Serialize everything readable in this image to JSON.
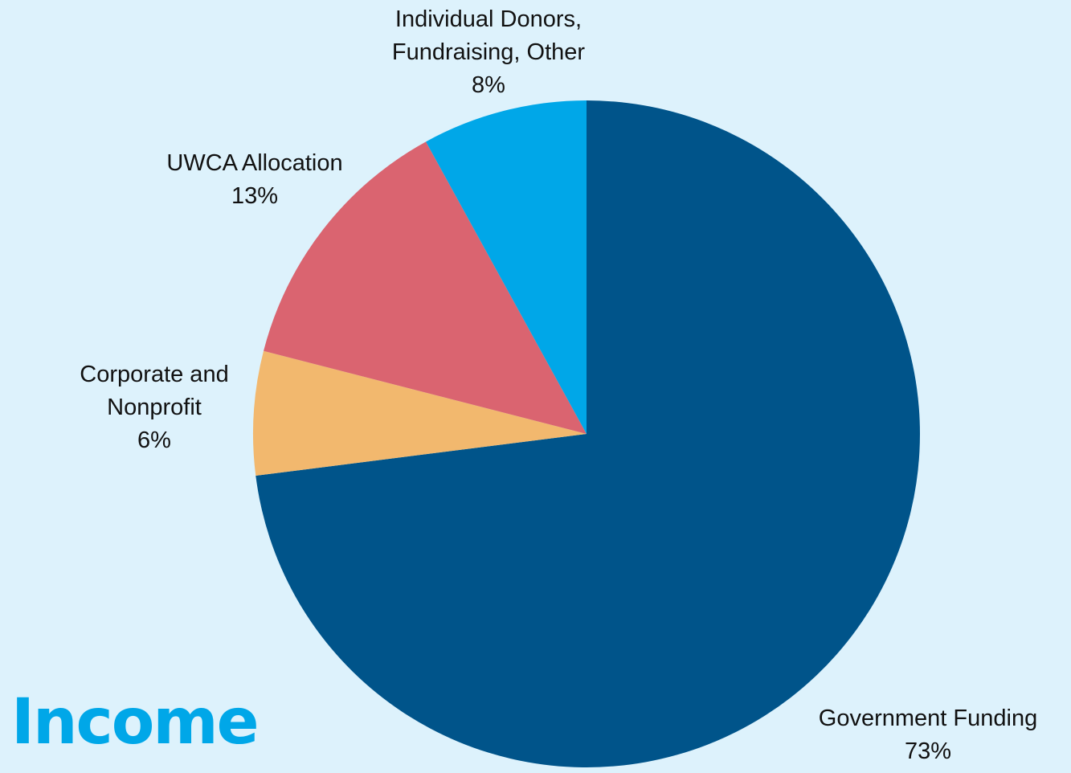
{
  "chart_data": {
    "type": "pie",
    "title": "Income",
    "slices": [
      {
        "label_lines": [
          "Government Funding"
        ],
        "value": 73,
        "display": "73%",
        "color": "#00548a"
      },
      {
        "label_lines": [
          "Corporate and",
          "Nonprofit"
        ],
        "value": 6,
        "display": "6%",
        "color": "#f2b86e"
      },
      {
        "label_lines": [
          "UWCA Allocation"
        ],
        "value": 13,
        "display": "13%",
        "color": "#da6470"
      },
      {
        "label_lines": [
          "Individual Donors,",
          "Fundraising, Other"
        ],
        "value": 8,
        "display": "8%",
        "color": "#00a7e8"
      }
    ],
    "start_angle": "12 o'clock",
    "direction": "clockwise",
    "legend": "none",
    "labels": "outside"
  },
  "colors": {
    "background": "#ddf2fc",
    "title": "#00a7e8",
    "label_text": "#111111"
  }
}
